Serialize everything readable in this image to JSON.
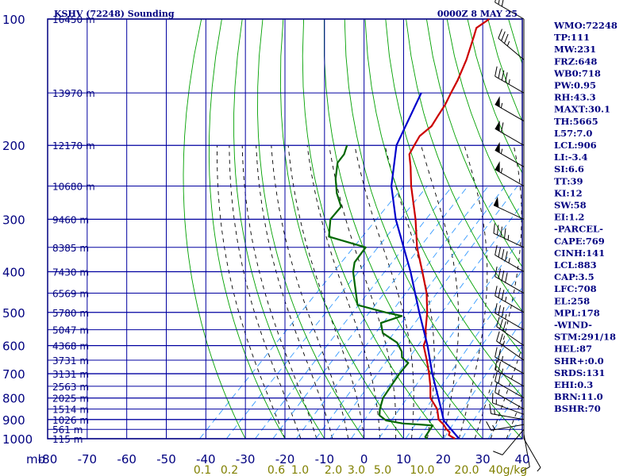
{
  "header": {
    "station": "KSHV (72248) Sounding",
    "datetime": "0000Z  8 MAY 25"
  },
  "indices": [
    "WMO:72248",
    "TP:111",
    "MW:231",
    "FRZ:648",
    "WB0:718",
    "PW:0.95",
    "RH:43.3",
    "MAXT:30.1",
    "TH:5665",
    "L57:7.0",
    "LCL:906",
    "LI:-3.4",
    "SI:6.6",
    "TT:39",
    "KI:12",
    "SW:58",
    "EI:1.2",
    "-PARCEL-",
    "CAPE:769",
    "CINH:141",
    "LCL:883",
    "CAP:3.5",
    "LFC:708",
    "EL:258",
    "MPL:178",
    "-WIND-",
    "STM:291/18",
    "HEL:87",
    "SHR+:0.0",
    "SRDS:131",
    "EHI:0.3",
    "BRN:11.0",
    "BSHR:70"
  ],
  "colors": {
    "frame": "#000080",
    "isobar": "#0000a0",
    "isotherm": "#0000a0",
    "dry_adiabat": "#00a000",
    "moist_adiabat": "#000000",
    "mixing_ratio": "#3399ff",
    "temperature": "#cc0000",
    "dewpoint": "#006600",
    "parcel": "#0000cc",
    "wind_barb": "#000000",
    "mixing_label": "#808000"
  },
  "chart_data": {
    "type": "line",
    "title": "KSHV (72248) Sounding",
    "subtitle": "0000Z  8 MAY 25",
    "ylabel": "mb",
    "y_scale": "log-pressure",
    "ylim": [
      1000,
      100
    ],
    "xlim": [
      -80,
      40
    ],
    "pressure_ticks": [
      "100",
      "200",
      "300",
      "400",
      "500",
      "600",
      "700",
      "800",
      "900",
      "1000"
    ],
    "temperature_ticks": [
      "-80",
      "-70",
      "-60",
      "-50",
      "-40",
      "-30",
      "-20",
      "-10",
      "0",
      "10",
      "20",
      "30",
      "40"
    ],
    "mixing_ratio_ticks": [
      "0.1",
      "0.2",
      "0.6",
      "1.0",
      "2.0",
      "3.0",
      "5.0",
      "10.0",
      "20.0",
      "40g/kg"
    ],
    "height_labels": [
      {
        "p": 100,
        "label": "16450 m"
      },
      {
        "p": 150,
        "label": "13970 m"
      },
      {
        "p": 200,
        "label": "12170 m"
      },
      {
        "p": 250,
        "label": "10680 m"
      },
      {
        "p": 300,
        "label": "9460 m"
      },
      {
        "p": 350,
        "label": "8385 m"
      },
      {
        "p": 400,
        "label": "7430 m"
      },
      {
        "p": 450,
        "label": "6569 m"
      },
      {
        "p": 500,
        "label": "5780 m"
      },
      {
        "p": 550,
        "label": "5047 m"
      },
      {
        "p": 600,
        "label": "4368 m"
      },
      {
        "p": 650,
        "label": "3731 m"
      },
      {
        "p": 700,
        "label": "3131 m"
      },
      {
        "p": 750,
        "label": "2563 m"
      },
      {
        "p": 800,
        "label": "2025 m"
      },
      {
        "p": 850,
        "label": "1514 m"
      },
      {
        "p": 900,
        "label": "1026 m"
      },
      {
        "p": 950,
        "label": "561 m"
      },
      {
        "p": 1000,
        "label": "115 m"
      }
    ],
    "series": [
      {
        "key": "temperature",
        "points": [
          [
            1000,
            23.0
          ],
          [
            980,
            20.5
          ],
          [
            965,
            20.0
          ],
          [
            950,
            18.5
          ],
          [
            925,
            16.5
          ],
          [
            900,
            14.0
          ],
          [
            850,
            11.0
          ],
          [
            800,
            6.5
          ],
          [
            750,
            3.5
          ],
          [
            700,
            0.0
          ],
          [
            650,
            -4.0
          ],
          [
            600,
            -8.5
          ],
          [
            580,
            -9.5
          ],
          [
            550,
            -12.0
          ],
          [
            500,
            -16.0
          ],
          [
            450,
            -21.0
          ],
          [
            400,
            -27.5
          ],
          [
            350,
            -35.0
          ],
          [
            300,
            -42.5
          ],
          [
            250,
            -52.0
          ],
          [
            225,
            -57.0
          ],
          [
            210,
            -60.5
          ],
          [
            200,
            -61.5
          ],
          [
            190,
            -62.5
          ],
          [
            180,
            -62.0
          ],
          [
            170,
            -63.0
          ],
          [
            160,
            -64.0
          ],
          [
            150,
            -65.5
          ],
          [
            140,
            -67.0
          ],
          [
            125,
            -70.0
          ],
          [
            110,
            -74.0
          ],
          [
            105,
            -75.5
          ],
          [
            100,
            -74.5
          ]
        ]
      },
      {
        "key": "dewpoint",
        "points": [
          [
            1000,
            16.0
          ],
          [
            990,
            15.0
          ],
          [
            960,
            14.5
          ],
          [
            930,
            14.0
          ],
          [
            925,
            10.5
          ],
          [
            920,
            6.0
          ],
          [
            905,
            1.0
          ],
          [
            880,
            -2.0
          ],
          [
            850,
            -3.5
          ],
          [
            800,
            -5.5
          ],
          [
            750,
            -6.5
          ],
          [
            700,
            -7.5
          ],
          [
            660,
            -8.0
          ],
          [
            640,
            -11.0
          ],
          [
            620,
            -12.5
          ],
          [
            590,
            -16.0
          ],
          [
            560,
            -22.0
          ],
          [
            530,
            -25.0
          ],
          [
            510,
            -21.5
          ],
          [
            500,
            -26.5
          ],
          [
            480,
            -35.5
          ],
          [
            400,
            -45.0
          ],
          [
            380,
            -47.0
          ],
          [
            350,
            -48.0
          ],
          [
            330,
            -60.0
          ],
          [
            300,
            -64.0
          ],
          [
            280,
            -64.5
          ],
          [
            260,
            -69.0
          ],
          [
            240,
            -73.0
          ],
          [
            220,
            -76.5
          ],
          [
            210,
            -77.0
          ],
          [
            200,
            -78.5
          ]
        ]
      },
      {
        "key": "parcel",
        "points": [
          [
            1000,
            24.0
          ],
          [
            906,
            15.6
          ],
          [
            850,
            12.0
          ],
          [
            800,
            8.5
          ],
          [
            700,
            0.8
          ],
          [
            600,
            -7.5
          ],
          [
            500,
            -18.0
          ],
          [
            400,
            -30.5
          ],
          [
            300,
            -47.5
          ],
          [
            250,
            -57.0
          ],
          [
            200,
            -66.0
          ],
          [
            150,
            -73.0
          ]
        ]
      }
    ],
    "wind_profile": [
      {
        "p": 1000,
        "dir": 150,
        "spd": 5
      },
      {
        "p": 975,
        "dir": 170,
        "spd": 10
      },
      {
        "p": 950,
        "dir": 220,
        "spd": 10
      },
      {
        "p": 925,
        "dir": 260,
        "spd": 15
      },
      {
        "p": 900,
        "dir": 280,
        "spd": 15
      },
      {
        "p": 875,
        "dir": 290,
        "spd": 15
      },
      {
        "p": 850,
        "dir": 300,
        "spd": 15
      },
      {
        "p": 800,
        "dir": 300,
        "spd": 20
      },
      {
        "p": 750,
        "dir": 300,
        "spd": 25
      },
      {
        "p": 700,
        "dir": 300,
        "spd": 25
      },
      {
        "p": 650,
        "dir": 305,
        "spd": 25
      },
      {
        "p": 600,
        "dir": 305,
        "spd": 30
      },
      {
        "p": 550,
        "dir": 300,
        "spd": 35
      },
      {
        "p": 500,
        "dir": 300,
        "spd": 35
      },
      {
        "p": 450,
        "dir": 300,
        "spd": 40
      },
      {
        "p": 400,
        "dir": 300,
        "spd": 45
      },
      {
        "p": 350,
        "dir": 295,
        "spd": 45
      },
      {
        "p": 300,
        "dir": 295,
        "spd": 50
      },
      {
        "p": 250,
        "dir": 300,
        "spd": 55
      },
      {
        "p": 225,
        "dir": 300,
        "spd": 55
      },
      {
        "p": 200,
        "dir": 300,
        "spd": 60
      },
      {
        "p": 175,
        "dir": 300,
        "spd": 55
      },
      {
        "p": 150,
        "dir": 300,
        "spd": 45
      },
      {
        "p": 125,
        "dir": 310,
        "spd": 35
      },
      {
        "p": 100,
        "dir": 300,
        "spd": 30
      }
    ]
  }
}
